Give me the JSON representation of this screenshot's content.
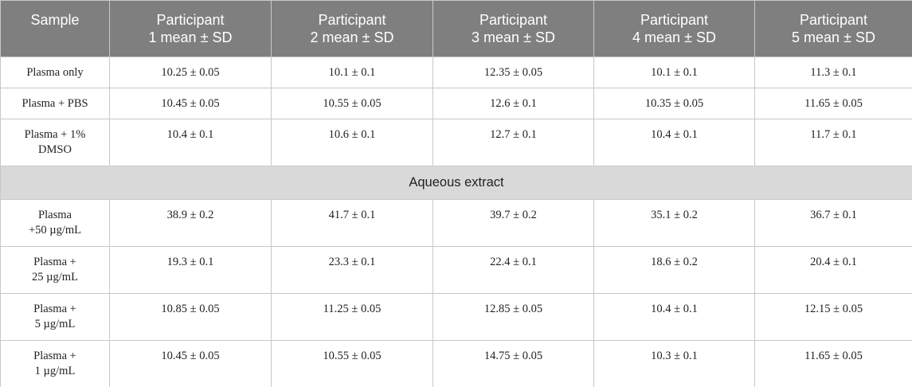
{
  "table": {
    "header": [
      [
        "Sample"
      ],
      [
        "Participant",
        "1 mean ± SD"
      ],
      [
        "Participant",
        "2 mean ± SD"
      ],
      [
        "Participant",
        "3 mean ± SD"
      ],
      [
        "Participant",
        "4 mean ± SD"
      ],
      [
        "Participant",
        "5 mean ± SD"
      ]
    ],
    "rows_before": [
      {
        "sample": [
          "Plasma only"
        ],
        "values": [
          "10.25 ± 0.05",
          "10.1 ± 0.1",
          "12.35 ± 0.05",
          "10.1 ± 0.1",
          "11.3 ± 0.1"
        ]
      },
      {
        "sample": [
          "Plasma + PBS"
        ],
        "values": [
          "10.45 ± 0.05",
          "10.55 ± 0.05",
          "12.6 ± 0.1",
          "10.35 ± 0.05",
          "11.65 ± 0.05"
        ]
      },
      {
        "sample": [
          "Plasma + 1%",
          "DMSO"
        ],
        "values": [
          "10.4 ± 0.1",
          "10.6 ± 0.1",
          "12.7 ± 0.1",
          "10.4 ± 0.1",
          "11.7 ± 0.1"
        ]
      }
    ],
    "section": "Aqueous extract",
    "rows_after": [
      {
        "sample": [
          "Plasma",
          "+50 µg/mL"
        ],
        "values": [
          "38.9 ± 0.2",
          "41.7 ± 0.1",
          "39.7 ± 0.2",
          "35.1 ± 0.2",
          "36.7 ± 0.1"
        ]
      },
      {
        "sample": [
          "Plasma +",
          "25 µg/mL"
        ],
        "values": [
          "19.3 ± 0.1",
          "23.3 ± 0.1",
          "22.4 ± 0.1",
          "18.6 ± 0.2",
          "20.4 ± 0.1"
        ]
      },
      {
        "sample": [
          "Plasma +",
          "5 µg/mL"
        ],
        "values": [
          "10.85 ± 0.05",
          "11.25 ± 0.05",
          "12.85 ± 0.05",
          "10.4 ± 0.1",
          "12.15 ± 0.05"
        ]
      },
      {
        "sample": [
          "Plasma +",
          "1 µg/mL"
        ],
        "values": [
          "10.45 ± 0.05",
          "10.55 ± 0.05",
          "14.75 ± 0.05",
          "10.3 ± 0.1",
          "11.65 ± 0.05"
        ]
      }
    ]
  }
}
